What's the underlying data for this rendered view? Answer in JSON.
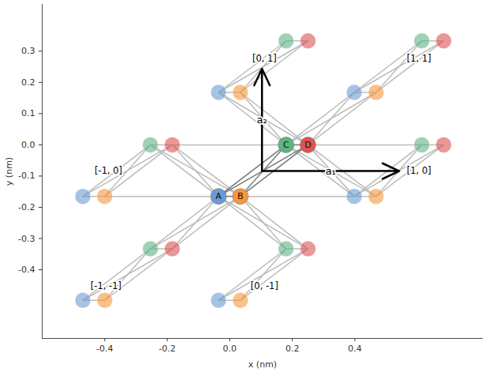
{
  "chart_data": {
    "type": "scatter",
    "x_label": "x (nm)",
    "y_label": "y (nm)",
    "xlim": [
      -0.6,
      0.81
    ],
    "ylim": [
      -0.62,
      0.45
    ],
    "xticks": [
      -0.4,
      -0.2,
      {
        "value": 0,
        "label": "0.0"
      },
      0.2,
      0.4
    ],
    "yticks": [
      -0.4,
      -0.3,
      -0.2,
      -0.1,
      {
        "value": 0,
        "label": "0.0"
      },
      0.1,
      0.2,
      0.3
    ],
    "sublattices": [
      {
        "name": "A",
        "color": "#6a9bd1"
      },
      {
        "name": "B",
        "color": "#f7963b"
      },
      {
        "name": "C",
        "color": "#5fb385"
      },
      {
        "name": "D",
        "color": "#e05252"
      }
    ],
    "cells": [
      {
        "label": null,
        "sites": [
          [
            -0.036,
            -0.165
          ],
          [
            0.034,
            -0.165
          ],
          [
            0.18,
            0
          ],
          [
            0.25,
            0
          ]
        ]
      },
      {
        "label": "[0, 1]",
        "label_x": 0.111,
        "label_y": 0.277,
        "sites": [
          [
            -0.036,
            0.168
          ],
          [
            0.034,
            0.168
          ],
          [
            0.18,
            0.333
          ],
          [
            0.25,
            0.333
          ]
        ]
      },
      {
        "label": "[1, 1]",
        "label_x": 0.605,
        "label_y": 0.277,
        "sites": [
          [
            0.398,
            0.168
          ],
          [
            0.468,
            0.168
          ],
          [
            0.614,
            0.333
          ],
          [
            0.684,
            0.333
          ]
        ]
      },
      {
        "label": "[-1, 0]",
        "label_x": -0.388,
        "label_y": -0.084,
        "sites": [
          [
            -0.47,
            -0.165
          ],
          [
            -0.4,
            -0.165
          ],
          [
            -0.254,
            0
          ],
          [
            -0.184,
            0
          ]
        ]
      },
      {
        "label": "[1, 0]",
        "label_x": 0.605,
        "label_y": -0.084,
        "sites": [
          [
            0.398,
            -0.165
          ],
          [
            0.468,
            -0.165
          ],
          [
            0.614,
            0
          ],
          [
            0.684,
            0
          ]
        ]
      },
      {
        "label": "[-1, -1]",
        "label_x": -0.396,
        "label_y": -0.453,
        "sites": [
          [
            -0.47,
            -0.498
          ],
          [
            -0.4,
            -0.498
          ],
          [
            -0.254,
            -0.333
          ],
          [
            -0.184,
            -0.333
          ]
        ]
      },
      {
        "label": "[0, -1]",
        "label_x": 0.111,
        "label_y": -0.453,
        "sites": [
          [
            -0.036,
            -0.498
          ],
          [
            0.034,
            -0.498
          ],
          [
            0.18,
            -0.333
          ],
          [
            0.25,
            -0.333
          ]
        ]
      }
    ],
    "cell_hoppings": [
      [
        0,
        1
      ],
      [
        0,
        2
      ],
      [
        0,
        3
      ],
      [
        1,
        2
      ],
      [
        1,
        3
      ],
      [
        2,
        3
      ]
    ],
    "inter_cell_hoppings": [
      [
        0,
        0,
        3,
        2
      ],
      [
        0,
        0,
        3,
        3
      ],
      [
        0,
        1,
        3,
        2
      ],
      [
        0,
        1,
        3,
        3
      ],
      [
        0,
        0,
        6,
        2
      ],
      [
        0,
        0,
        6,
        3
      ],
      [
        0,
        1,
        6,
        2
      ],
      [
        0,
        1,
        6,
        3
      ],
      [
        0,
        0,
        5,
        2
      ],
      [
        0,
        0,
        5,
        3
      ],
      [
        0,
        1,
        5,
        2
      ],
      [
        0,
        1,
        5,
        3
      ],
      [
        0,
        2,
        4,
        0
      ],
      [
        0,
        2,
        4,
        1
      ],
      [
        0,
        3,
        4,
        0
      ],
      [
        0,
        3,
        4,
        1
      ],
      [
        0,
        2,
        1,
        0
      ],
      [
        0,
        2,
        1,
        1
      ],
      [
        0,
        3,
        1,
        0
      ],
      [
        0,
        3,
        1,
        1
      ],
      [
        0,
        2,
        2,
        0
      ],
      [
        0,
        2,
        2,
        1
      ],
      [
        0,
        3,
        2,
        0
      ],
      [
        0,
        3,
        2,
        1
      ],
      [
        3,
        1,
        0,
        0
      ],
      [
        0,
        1,
        4,
        0
      ],
      [
        3,
        3,
        0,
        2
      ],
      [
        0,
        3,
        4,
        2
      ]
    ],
    "lattice_vectors": [
      {
        "label": "a₁",
        "x1": 0.103,
        "y1": -0.084,
        "x2": 0.542,
        "y2": -0.084
      },
      {
        "label": "a₂",
        "x1": 0.103,
        "y1": -0.084,
        "x2": 0.103,
        "y2": 0.244
      }
    ]
  }
}
